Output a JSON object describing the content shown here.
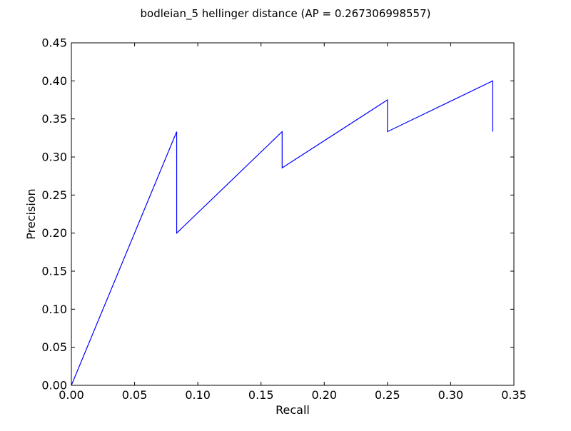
{
  "chart_data": {
    "type": "line",
    "title": "bodleian_5 hellinger distance  (AP = 0.267306998557)",
    "xlabel": "Recall",
    "ylabel": "Precision",
    "xlim": [
      0.0,
      0.35
    ],
    "ylim": [
      0.0,
      0.45
    ],
    "xticks": [
      0.0,
      0.05,
      0.1,
      0.15,
      0.2,
      0.25,
      0.3,
      0.35
    ],
    "xtick_labels": [
      "0.00",
      "0.05",
      "0.10",
      "0.15",
      "0.20",
      "0.25",
      "0.30",
      "0.35"
    ],
    "yticks": [
      0.0,
      0.05,
      0.1,
      0.15,
      0.2,
      0.25,
      0.3,
      0.35,
      0.4,
      0.45
    ],
    "ytick_labels": [
      "0.00",
      "0.05",
      "0.10",
      "0.15",
      "0.20",
      "0.25",
      "0.30",
      "0.35",
      "0.40",
      "0.45"
    ],
    "grid": false,
    "legend": "none",
    "series": [
      {
        "color": "#0000ff",
        "x": [
          0.0,
          0.0833,
          0.0833,
          0.1667,
          0.1667,
          0.25,
          0.25,
          0.3333,
          0.3333
        ],
        "y": [
          0.0,
          0.3333,
          0.2,
          0.3333,
          0.2857,
          0.375,
          0.3333,
          0.4,
          0.3333
        ]
      }
    ]
  }
}
